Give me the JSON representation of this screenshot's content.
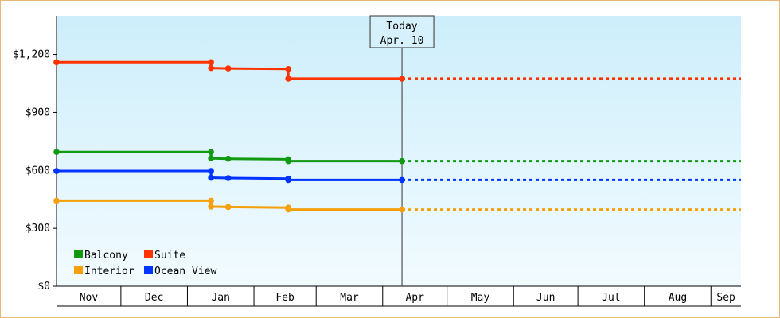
{
  "chart_data": {
    "type": "line",
    "step": true,
    "yticks": [
      "$0",
      "$300",
      "$600",
      "$900",
      "$1,200"
    ],
    "ytick_values": [
      0,
      300,
      600,
      900,
      1200
    ],
    "ylim": [
      0,
      1400
    ],
    "months": [
      "Nov",
      "Dec",
      "Jan",
      "Feb",
      "Mar",
      "Apr",
      "May",
      "Jun",
      "Jul",
      "Aug",
      "Sep"
    ],
    "xlim": [
      "2023-11-01",
      "2024-09-15"
    ],
    "today": {
      "label": "Today",
      "date_label": "Apr. 10",
      "date": "2024-04-10"
    },
    "projection_end": "2024-09-15",
    "legend_position": "bottom-left",
    "background_gradient": [
      "#cdeefb",
      "#f2fbff"
    ],
    "series": [
      {
        "name": "Suite",
        "color": "#ff3300",
        "points": [
          {
            "date": "2023-11-01",
            "value": 1160
          },
          {
            "date": "2024-01-12",
            "value": 1160
          },
          {
            "date": "2024-01-12",
            "value": 1130
          },
          {
            "date": "2024-01-20",
            "value": 1128
          },
          {
            "date": "2024-02-17",
            "value": 1125
          },
          {
            "date": "2024-02-17",
            "value": 1075
          },
          {
            "date": "2024-04-10",
            "value": 1075
          }
        ]
      },
      {
        "name": "Balcony",
        "color": "#119911",
        "points": [
          {
            "date": "2023-11-01",
            "value": 695
          },
          {
            "date": "2024-01-12",
            "value": 695
          },
          {
            "date": "2024-01-12",
            "value": 662
          },
          {
            "date": "2024-01-20",
            "value": 660
          },
          {
            "date": "2024-02-17",
            "value": 657
          },
          {
            "date": "2024-02-17",
            "value": 648
          },
          {
            "date": "2024-04-10",
            "value": 648
          }
        ]
      },
      {
        "name": "Ocean View",
        "color": "#0033ff",
        "points": [
          {
            "date": "2023-11-01",
            "value": 597
          },
          {
            "date": "2024-01-12",
            "value": 597
          },
          {
            "date": "2024-01-12",
            "value": 562
          },
          {
            "date": "2024-01-20",
            "value": 560
          },
          {
            "date": "2024-02-17",
            "value": 557
          },
          {
            "date": "2024-02-17",
            "value": 550
          },
          {
            "date": "2024-04-10",
            "value": 550
          }
        ]
      },
      {
        "name": "Interior",
        "color": "#f5a00a",
        "points": [
          {
            "date": "2023-11-01",
            "value": 443
          },
          {
            "date": "2024-01-12",
            "value": 443
          },
          {
            "date": "2024-01-12",
            "value": 412
          },
          {
            "date": "2024-01-20",
            "value": 410
          },
          {
            "date": "2024-02-17",
            "value": 407
          },
          {
            "date": "2024-02-17",
            "value": 397
          },
          {
            "date": "2024-04-10",
            "value": 397
          }
        ]
      }
    ],
    "legend": [
      {
        "name": "Balcony",
        "color": "#119911"
      },
      {
        "name": "Suite",
        "color": "#ff3300"
      },
      {
        "name": "Interior",
        "color": "#f5a00a"
      },
      {
        "name": "Ocean View",
        "color": "#0033ff"
      }
    ]
  }
}
